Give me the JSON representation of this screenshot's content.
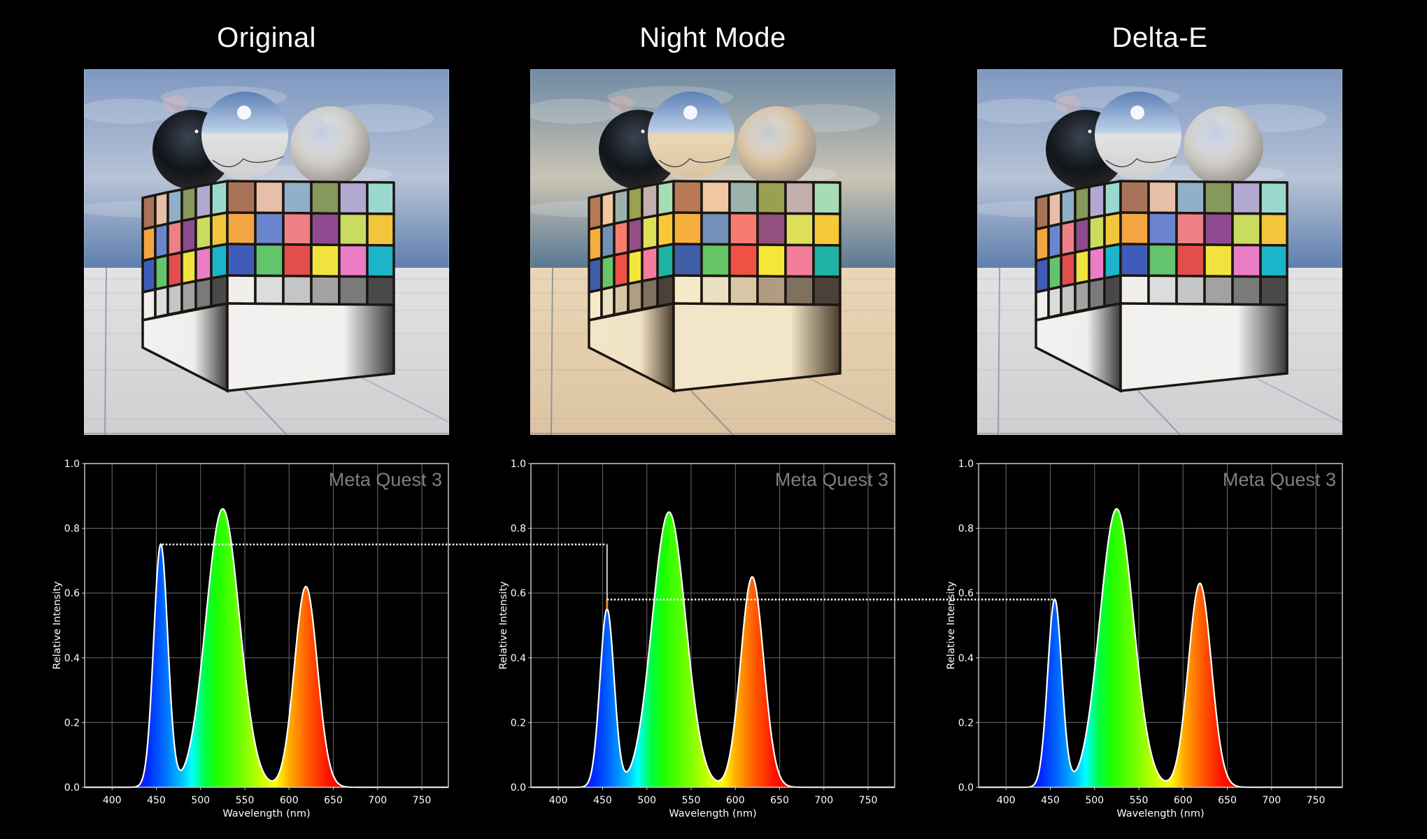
{
  "panels": [
    {
      "title": "Original",
      "scene": {
        "sky_top": "#7e98c0",
        "sky_bottom": "#b7c3d6",
        "horizon": "#5f7fae",
        "floor_near": "#cfcfd2",
        "floor_far": "#e2e2e4",
        "grid_line": "#8a90a0",
        "matte_sphere": "#cfcbc6",
        "base_light": "#f2f1f0",
        "base_dark": "#3a3838",
        "patch_tint": "none"
      }
    },
    {
      "title": "Night Mode",
      "scene": {
        "sky_top": "#6f8aa3",
        "sky_bottom": "#c9c4b4",
        "horizon": "#5b7894",
        "floor_near": "#dcc4a2",
        "floor_far": "#ead6b6",
        "grid_line": "#7f8a94",
        "matte_sphere": "#d8c1a0",
        "base_light": "#f3e6c8",
        "base_dark": "#4a3b2a",
        "patch_tint": "warm"
      }
    },
    {
      "title": "Delta-E",
      "scene": {
        "sky_top": "#7e98c0",
        "sky_bottom": "#b7c3d6",
        "horizon": "#5f7fae",
        "floor_near": "#cfcfd2",
        "floor_far": "#e2e2e4",
        "grid_line": "#8a90a0",
        "matte_sphere": "#cfcbc6",
        "base_light": "#f2f1f0",
        "base_dark": "#3a3838",
        "patch_tint": "none"
      }
    }
  ],
  "color_checker": {
    "rows": [
      [
        "#a9735a",
        "#e6bfa8",
        "#8fb0c8",
        "#86985c",
        "#b2a9d2",
        "#9ad8cf"
      ],
      [
        "#f2a541",
        "#6b86cf",
        "#ef7f86",
        "#8e4b90",
        "#c9dc60",
        "#f2c63c"
      ],
      [
        "#3f5cb8",
        "#62c46c",
        "#e24e4c",
        "#f1e23d",
        "#ea7dc5",
        "#1cb4c8"
      ],
      [
        "#f0efee",
        "#dcdcdc",
        "#c5c5c5",
        "#a2a2a2",
        "#7a7a7a",
        "#4a4848"
      ]
    ],
    "warm_rows": [
      [
        "#b77a55",
        "#efc7a0",
        "#9bb2ad",
        "#98a14f",
        "#c4aeae",
        "#a6dbb4"
      ],
      [
        "#f6ae3e",
        "#7290b8",
        "#f77b6f",
        "#934f80",
        "#dfe05a",
        "#f7c939"
      ],
      [
        "#3f5ea8",
        "#66c565",
        "#ef5145",
        "#f6e63a",
        "#f27d9a",
        "#1eb3a4"
      ],
      [
        "#f6ebc9",
        "#ece0c2",
        "#d9c6a5",
        "#b09c82",
        "#807060",
        "#4c4138"
      ]
    ]
  },
  "chart_data": [
    {
      "type": "area",
      "title": "",
      "annotation": "Meta Quest 3",
      "xlabel": "Wavelength (nm)",
      "ylabel": "Relative Intensity",
      "xlim": [
        369,
        780
      ],
      "ylim": [
        0.0,
        1.0
      ],
      "xticks": [
        400,
        450,
        500,
        550,
        600,
        650,
        700,
        750
      ],
      "yticks": [
        0.0,
        0.2,
        0.4,
        0.6,
        0.8,
        1.0
      ],
      "grid": true,
      "peaks": [
        {
          "name": "blue",
          "wavelength": 455,
          "intensity": 0.75,
          "width": 8
        },
        {
          "name": "green",
          "wavelength": 525,
          "intensity": 0.86,
          "width": 19
        },
        {
          "name": "red",
          "wavelength": 619,
          "intensity": 0.62,
          "width": 13
        }
      ],
      "troughs": [
        {
          "wavelength": 477,
          "intensity": 0.07
        },
        {
          "wavelength": 579,
          "intensity": 0.04
        }
      ]
    },
    {
      "type": "area",
      "title": "",
      "annotation": "Meta Quest 3",
      "xlabel": "Wavelength (nm)",
      "ylabel": "Relative Intensity",
      "xlim": [
        369,
        780
      ],
      "ylim": [
        0.0,
        1.0
      ],
      "xticks": [
        400,
        450,
        500,
        550,
        600,
        650,
        700,
        750
      ],
      "yticks": [
        0.0,
        0.2,
        0.4,
        0.6,
        0.8,
        1.0
      ],
      "grid": true,
      "peaks": [
        {
          "name": "blue",
          "wavelength": 455,
          "intensity": 0.55,
          "width": 8
        },
        {
          "name": "green",
          "wavelength": 525,
          "intensity": 0.85,
          "width": 19
        },
        {
          "name": "red",
          "wavelength": 619,
          "intensity": 0.65,
          "width": 13
        }
      ],
      "troughs": [
        {
          "wavelength": 477,
          "intensity": 0.06
        },
        {
          "wavelength": 579,
          "intensity": 0.04
        }
      ]
    },
    {
      "type": "area",
      "title": "",
      "annotation": "Meta Quest 3",
      "xlabel": "Wavelength (nm)",
      "ylabel": "Relative Intensity",
      "xlim": [
        369,
        780
      ],
      "ylim": [
        0.0,
        1.0
      ],
      "xticks": [
        400,
        450,
        500,
        550,
        600,
        650,
        700,
        750
      ],
      "yticks": [
        0.0,
        0.2,
        0.4,
        0.6,
        0.8,
        1.0
      ],
      "grid": true,
      "peaks": [
        {
          "name": "blue",
          "wavelength": 455,
          "intensity": 0.58,
          "width": 8
        },
        {
          "name": "green",
          "wavelength": 525,
          "intensity": 0.86,
          "width": 19
        },
        {
          "name": "red",
          "wavelength": 619,
          "intensity": 0.63,
          "width": 13
        }
      ],
      "troughs": [
        {
          "wavelength": 477,
          "intensity": 0.06
        },
        {
          "wavelength": 579,
          "intensity": 0.04
        }
      ]
    }
  ],
  "connectors": [
    {
      "from_panel": 0,
      "to_panel": 1,
      "level": 0.75,
      "label": "blue peak Original → Night Mode"
    },
    {
      "from_panel": 1,
      "to_panel": 2,
      "level": 0.58,
      "label": "Night Mode compensated → Delta-E blue peak"
    }
  ],
  "style": {
    "background": "#000000",
    "grid_color": "#5a5a5a",
    "axis_color": "#cfcfcf",
    "annotation_color": "#7f7f7f",
    "curve_outline": "#ffffff",
    "connector_color": "#ffffff",
    "connector_accent": "#f08a1c"
  }
}
